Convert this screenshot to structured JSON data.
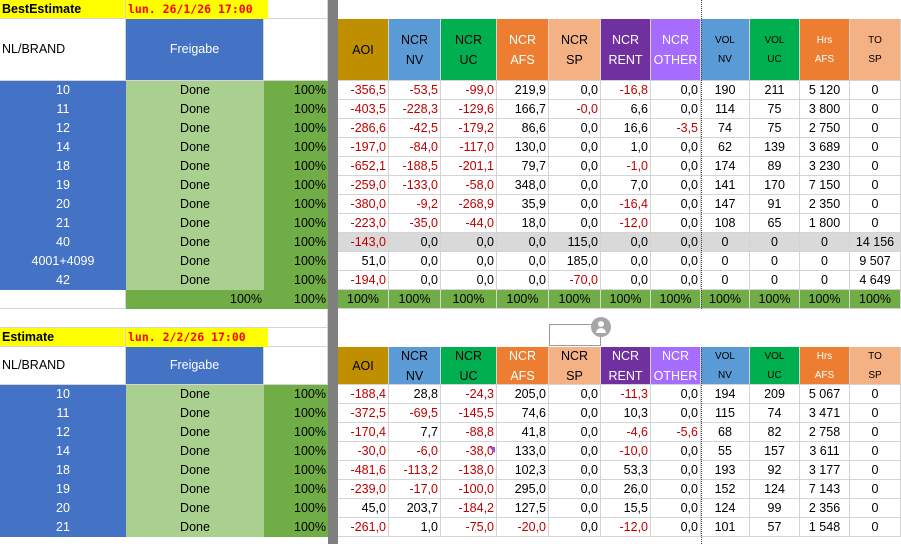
{
  "colors": {
    "navy": "#4472c4",
    "light_green": "#a9d08e",
    "green": "#70ad47",
    "yellow": "#ffff00",
    "date_red": "#ff0000",
    "gold": "#bf8f00",
    "blue_header": "#5b9bd5",
    "teal": "#00b050",
    "orange": "#ed7d31",
    "peach": "#f4b183",
    "purple": "#7030a0",
    "lavender": "#a66cff",
    "neg_red": "#c00000",
    "gray_row": "#d9d9d9"
  },
  "block1": {
    "title": "BestEstimate",
    "datetime": "lun. 26/1/26 17:00",
    "label_nlbrand": "NL/BRAND",
    "label_freigabe": "Freigabe",
    "headers": [
      [
        "AOI"
      ],
      [
        "NCR",
        "NV"
      ],
      [
        "NCR",
        "UC"
      ],
      [
        "NCR",
        "AFS"
      ],
      [
        "NCR",
        "SP"
      ],
      [
        "NCR",
        "RENT"
      ],
      [
        "NCR",
        "OTHER"
      ],
      [
        "VOL",
        "NV"
      ],
      [
        "VOL",
        "UC"
      ],
      [
        "Hrs",
        "AFS"
      ],
      [
        "TO",
        "SP"
      ]
    ],
    "rows": [
      {
        "brand": "10",
        "status": "Done",
        "pct": "100%",
        "vals": [
          "-356,5",
          "-53,5",
          "-99,0",
          "219,9",
          "0,0",
          "-16,8",
          "0,0",
          "190",
          "211",
          "5 120",
          "0"
        ]
      },
      {
        "brand": "11",
        "status": "Done",
        "pct": "100%",
        "vals": [
          "-403,5",
          "-228,3",
          "-129,6",
          "166,7",
          "-0,0",
          "6,6",
          "0,0",
          "114",
          "75",
          "3 800",
          "0"
        ]
      },
      {
        "brand": "12",
        "status": "Done",
        "pct": "100%",
        "vals": [
          "-286,6",
          "-42,5",
          "-179,2",
          "86,6",
          "0,0",
          "16,6",
          "-3,5",
          "74",
          "75",
          "2 750",
          "0"
        ]
      },
      {
        "brand": "14",
        "status": "Done",
        "pct": "100%",
        "vals": [
          "-197,0",
          "-84,0",
          "-117,0",
          "130,0",
          "0,0",
          "1,0",
          "0,0",
          "62",
          "139",
          "3 689",
          "0"
        ]
      },
      {
        "brand": "18",
        "status": "Done",
        "pct": "100%",
        "vals": [
          "-652,1",
          "-188,5",
          "-201,1",
          "79,7",
          "0,0",
          "-1,0",
          "0,0",
          "174",
          "89",
          "3 230",
          "0"
        ]
      },
      {
        "brand": "19",
        "status": "Done",
        "pct": "100%",
        "vals": [
          "-259,0",
          "-133,0",
          "-58,0",
          "348,0",
          "0,0",
          "7,0",
          "0,0",
          "141",
          "170",
          "7 150",
          "0"
        ]
      },
      {
        "brand": "20",
        "status": "Done",
        "pct": "100%",
        "vals": [
          "-380,0",
          "-9,2",
          "-268,9",
          "35,9",
          "0,0",
          "-16,4",
          "0,0",
          "147",
          "91",
          "2 350",
          "0"
        ]
      },
      {
        "brand": "21",
        "status": "Done",
        "pct": "100%",
        "vals": [
          "-223,0",
          "-35,0",
          "-44,0",
          "18,0",
          "0,0",
          "-12,0",
          "0,0",
          "108",
          "65",
          "1 800",
          "0"
        ]
      },
      {
        "brand": "40",
        "status": "Done",
        "pct": "100%",
        "vals": [
          "-143,0",
          "0,0",
          "0,0",
          "0,0",
          "115,0",
          "0,0",
          "0,0",
          "0",
          "0",
          "0",
          "14 156"
        ]
      },
      {
        "brand": "4001+4099",
        "status": "Done",
        "pct": "100%",
        "vals": [
          "51,0",
          "0,0",
          "0,0",
          "0,0",
          "185,0",
          "0,0",
          "0,0",
          "0",
          "0",
          "0",
          "9 507"
        ]
      },
      {
        "brand": "42",
        "status": "Done",
        "pct": "100%",
        "vals": [
          "-194,0",
          "0,0",
          "0,0",
          "0,0",
          "-70,0",
          "0,0",
          "0,0",
          "0",
          "0",
          "0",
          "4 649"
        ]
      }
    ],
    "totals": {
      "b": "100%",
      "c": "100%",
      "vals": [
        "100%",
        "100%",
        "100%",
        "100%",
        "100%",
        "100%",
        "100%",
        "100%",
        "100%",
        "100%",
        "100%"
      ]
    }
  },
  "block2": {
    "title": "Estimate",
    "datetime": "lun. 2/2/26 17:00",
    "label_nlbrand": "NL/BRAND",
    "label_freigabe": "Freigabe",
    "rows": [
      {
        "brand": "10",
        "status": "Done",
        "pct": "100%",
        "vals": [
          "-188,4",
          "28,8",
          "-24,3",
          "205,0",
          "0,0",
          "-11,3",
          "0,0",
          "194",
          "209",
          "5 067",
          "0"
        ]
      },
      {
        "brand": "11",
        "status": "Done",
        "pct": "100%",
        "vals": [
          "-372,5",
          "-69,5",
          "-145,5",
          "74,6",
          "0,0",
          "10,3",
          "0,0",
          "115",
          "74",
          "3 471",
          "0"
        ]
      },
      {
        "brand": "12",
        "status": "Done",
        "pct": "100%",
        "vals": [
          "-170,4",
          "7,7",
          "-88,8",
          "41,8",
          "0,0",
          "-4,6",
          "-5,6",
          "68",
          "82",
          "2 758",
          "0"
        ]
      },
      {
        "brand": "14",
        "status": "Done",
        "pct": "100%",
        "vals": [
          "-30,0",
          "-6,0",
          "-38,0",
          "133,0",
          "0,0",
          "-10,0",
          "0,0",
          "55",
          "157",
          "3 611",
          "0"
        ]
      },
      {
        "brand": "18",
        "status": "Done",
        "pct": "100%",
        "vals": [
          "-481,6",
          "-113,2",
          "-138,0",
          "102,3",
          "0,0",
          "53,3",
          "0,0",
          "193",
          "92",
          "3 177",
          "0"
        ]
      },
      {
        "brand": "19",
        "status": "Done",
        "pct": "100%",
        "vals": [
          "-239,0",
          "-17,0",
          "-100,0",
          "295,0",
          "0,0",
          "26,0",
          "0,0",
          "152",
          "124",
          "7 143",
          "0"
        ]
      },
      {
        "brand": "20",
        "status": "Done",
        "pct": "100%",
        "vals": [
          "45,0",
          "203,7",
          "-184,2",
          "127,5",
          "0,0",
          "15,5",
          "0,0",
          "124",
          "99",
          "2 356",
          "0"
        ]
      },
      {
        "brand": "21",
        "status": "Done",
        "pct": "100%",
        "vals": [
          "-261,0",
          "1,0",
          "-75,0",
          "-20,0",
          "0,0",
          "-12,0",
          "0,0",
          "101",
          "57",
          "1 548",
          "0"
        ]
      }
    ]
  }
}
